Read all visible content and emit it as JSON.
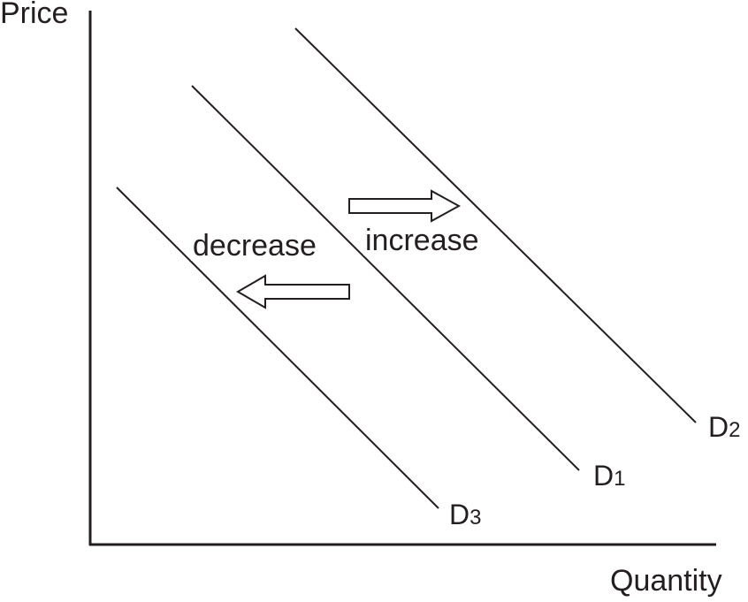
{
  "axes": {
    "y_label": "Price",
    "x_label": "Quantity"
  },
  "curves": [
    {
      "letter": "D",
      "number": "2"
    },
    {
      "letter": "D",
      "number": "1"
    },
    {
      "letter": "D",
      "number": "3"
    }
  ],
  "shift_labels": {
    "increase": "increase",
    "decrease": "decrease"
  },
  "colors": {
    "line": "#231f20",
    "background": "#ffffff"
  }
}
